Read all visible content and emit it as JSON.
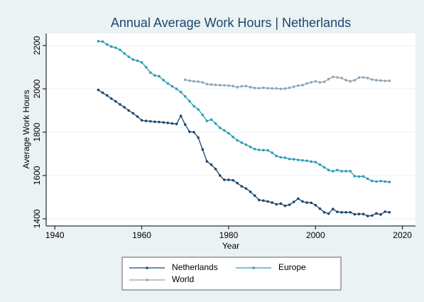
{
  "chart_data": {
    "type": "line",
    "title": "Annual Average Work Hours | Netherlands",
    "xlabel": "Year",
    "ylabel": "Average Work Hours",
    "x": [
      1950,
      1951,
      1952,
      1953,
      1954,
      1955,
      1956,
      1957,
      1958,
      1959,
      1960,
      1961,
      1962,
      1963,
      1964,
      1965,
      1966,
      1967,
      1968,
      1969,
      1970,
      1971,
      1972,
      1973,
      1974,
      1975,
      1976,
      1977,
      1978,
      1979,
      1980,
      1981,
      1982,
      1983,
      1984,
      1985,
      1986,
      1987,
      1988,
      1989,
      1990,
      1991,
      1992,
      1993,
      1994,
      1995,
      1996,
      1997,
      1998,
      1999,
      2000,
      2001,
      2002,
      2003,
      2004,
      2005,
      2006,
      2007,
      2008,
      2009,
      2010,
      2011,
      2012,
      2013,
      2014,
      2015,
      2016,
      2017
    ],
    "series": [
      {
        "name": "Netherlands",
        "color": "#1a476f",
        "values": [
          1995,
          1982,
          1970,
          1955,
          1942,
          1928,
          1915,
          1900,
          1887,
          1872,
          1855,
          1852,
          1850,
          1848,
          1847,
          1845,
          1843,
          1840,
          1838,
          1875,
          1835,
          1802,
          1800,
          1775,
          1720,
          1665,
          1650,
          1630,
          1600,
          1580,
          1580,
          1578,
          1565,
          1550,
          1540,
          1525,
          1507,
          1487,
          1484,
          1480,
          1475,
          1467,
          1470,
          1460,
          1465,
          1478,
          1493,
          1480,
          1475,
          1474,
          1463,
          1447,
          1430,
          1424,
          1445,
          1432,
          1430,
          1430,
          1430,
          1421,
          1422,
          1422,
          1413,
          1415,
          1425,
          1420,
          1433,
          1430
        ]
      },
      {
        "name": "Europe",
        "color": "#2b9cb8",
        "values": [
          2220,
          2218,
          2205,
          2195,
          2190,
          2180,
          2163,
          2148,
          2135,
          2130,
          2122,
          2100,
          2075,
          2062,
          2058,
          2040,
          2025,
          2012,
          2000,
          1985,
          1965,
          1943,
          1920,
          1905,
          1880,
          1852,
          1858,
          1840,
          1820,
          1808,
          1795,
          1778,
          1762,
          1752,
          1742,
          1732,
          1722,
          1718,
          1717,
          1716,
          1705,
          1690,
          1684,
          1682,
          1676,
          1675,
          1672,
          1670,
          1668,
          1664,
          1662,
          1650,
          1638,
          1625,
          1620,
          1625,
          1620,
          1620,
          1620,
          1597,
          1595,
          1596,
          1585,
          1575,
          1572,
          1574,
          1572,
          1570
        ]
      },
      {
        "name": "World",
        "color": "#90a4b8",
        "values": [
          null,
          null,
          null,
          null,
          null,
          null,
          null,
          null,
          null,
          null,
          null,
          null,
          null,
          null,
          null,
          null,
          null,
          null,
          null,
          null,
          2042,
          2038,
          2035,
          2033,
          2030,
          2022,
          2020,
          2018,
          2017,
          2016,
          2015,
          2013,
          2008,
          2012,
          2013,
          2008,
          2004,
          2003,
          2005,
          2003,
          2002,
          2002,
          2000,
          2001,
          2005,
          2010,
          2015,
          2017,
          2025,
          2030,
          2035,
          2030,
          2032,
          2045,
          2055,
          2053,
          2050,
          2040,
          2035,
          2040,
          2052,
          2053,
          2050,
          2043,
          2040,
          2038,
          2037,
          2037
        ]
      }
    ],
    "xlim": [
      1938,
      2023
    ],
    "xticks": [
      1940,
      1960,
      1980,
      2000,
      2020
    ],
    "ylim": [
      1367,
      2256
    ],
    "yticks": [
      1400,
      1600,
      1800,
      2000,
      2200
    ],
    "grid": true,
    "legend": "bottom"
  }
}
